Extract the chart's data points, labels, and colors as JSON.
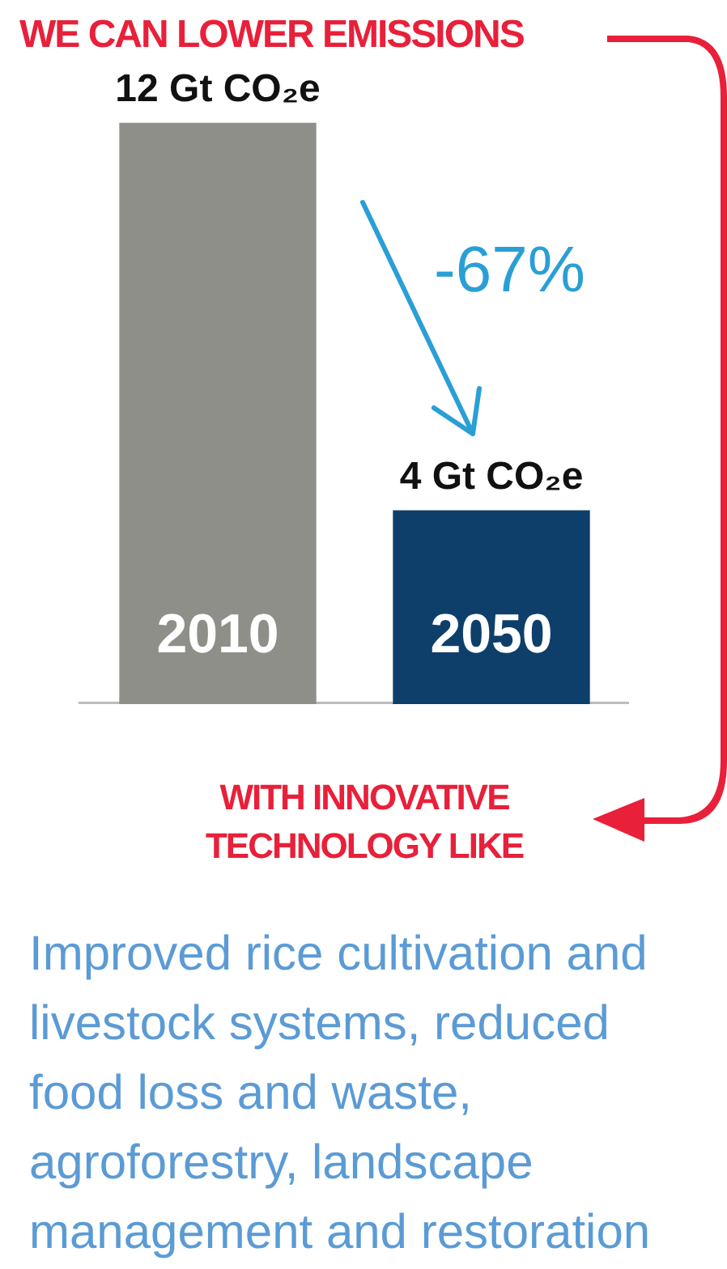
{
  "chart_data": {
    "type": "bar",
    "title": "WE CAN LOWER EMISSIONS",
    "categories": [
      "2010",
      "2050"
    ],
    "values": [
      12,
      4
    ],
    "colors": [
      "#8f8f89",
      "#0e3f6b"
    ],
    "value_labels": [
      "12 Gt CO₂e",
      "4 Gt CO₂e"
    ],
    "annotations": [
      "-67%",
      "WITH INNOVATIVE TECHNOLOGY LIKE",
      "Improved rice cultivation and livestock systems, reduced food loss and waste, agroforestry, landscape management and restoration"
    ],
    "grid": false,
    "legend": false
  }
}
